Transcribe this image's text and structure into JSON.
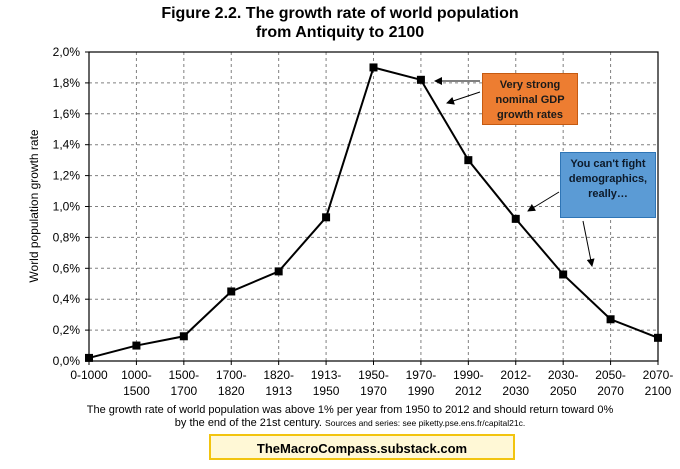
{
  "title_line1": "Figure 2.2. The growth rate of world population",
  "title_line2": "from Antiquity to 2100",
  "caption_main": "The growth rate of world population was above 1% per year from 1950 to 2012 and should return toward 0%",
  "caption_line2": "by the end of the 21st century.",
  "caption_sources": "Sources and series: see piketty.pse.ens.fr/capital21c.",
  "brand": "TheMacroCompass.substack.com",
  "callouts": {
    "gdp": "Very strong nominal GDP growth rates",
    "demographics": "You can't fight demographics, really…"
  },
  "colors": {
    "line": "#000000",
    "grid": "#808080",
    "orange_box": "#ed7d31",
    "blue_box": "#5b9bd5",
    "brand_border": "#f2c40f"
  },
  "chart_data": {
    "type": "line",
    "title": "Figure 2.2. The growth rate of world population from Antiquity to 2100",
    "xlabel": "",
    "ylabel": "World population growth rate",
    "ylim": [
      0,
      2.0
    ],
    "yticks": [
      "0,0%",
      "0,2%",
      "0,4%",
      "0,6%",
      "0,8%",
      "1,0%",
      "1,2%",
      "1,4%",
      "1,6%",
      "1,8%",
      "2,0%"
    ],
    "grid": true,
    "categories": [
      [
        "0-1000"
      ],
      [
        "1000-",
        "1500"
      ],
      [
        "1500-",
        "1700"
      ],
      [
        "1700-",
        "1820"
      ],
      [
        "1820-",
        "1913"
      ],
      [
        "1913-",
        "1950"
      ],
      [
        "1950-",
        "1970"
      ],
      [
        "1970-",
        "1990"
      ],
      [
        "1990-",
        "2012"
      ],
      [
        "2012-",
        "2030"
      ],
      [
        "2030-",
        "2050"
      ],
      [
        "2050-",
        "2070"
      ],
      [
        "2070-",
        "2100"
      ]
    ],
    "values": [
      0.02,
      0.1,
      0.16,
      0.45,
      0.58,
      0.93,
      1.9,
      1.82,
      1.3,
      0.92,
      0.56,
      0.27,
      0.15
    ],
    "marker": "square"
  }
}
